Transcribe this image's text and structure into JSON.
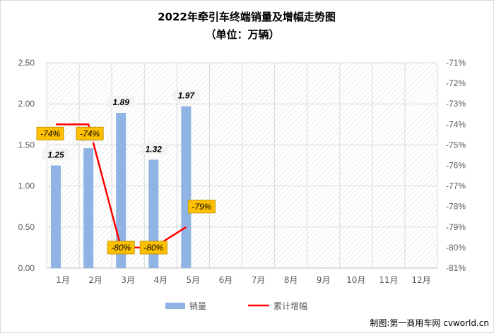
{
  "chart_data": {
    "type": "bar+line",
    "title": "2022年牵引车终端销量及增幅走势图",
    "subtitle": "（单位：万辆）",
    "categories": [
      "1月",
      "2月",
      "3月",
      "4月",
      "5月",
      "6月",
      "7月",
      "8月",
      "9月",
      "10月",
      "11月",
      "12月"
    ],
    "series": [
      {
        "name": "销量",
        "type": "bar",
        "axis": "left",
        "color": "#8fb4e3",
        "values": [
          1.25,
          1.46,
          1.89,
          1.32,
          1.97,
          null,
          null,
          null,
          null,
          null,
          null,
          null
        ],
        "labels": [
          "1.25",
          "1.46",
          "1.89",
          "1.32",
          "1.97"
        ]
      },
      {
        "name": "累计增幅",
        "type": "line",
        "axis": "right",
        "color": "#ff0000",
        "values": [
          -74,
          -74,
          -80,
          -80,
          -79,
          null,
          null,
          null,
          null,
          null,
          null,
          null
        ],
        "labels": [
          "-74%",
          "-74%",
          "-80%",
          "-80%",
          "-79%"
        ]
      }
    ],
    "y_left": {
      "min": 0,
      "max": 2.5,
      "ticks": [
        "0.00",
        "0.50",
        "1.00",
        "1.50",
        "2.00",
        "2.50"
      ]
    },
    "y_right": {
      "min": -81,
      "max": -71,
      "ticks": [
        "-71%",
        "-72%",
        "-73%",
        "-74%",
        "-75%",
        "-76%",
        "-77%",
        "-78%",
        "-79%",
        "-80%",
        "-81%"
      ]
    },
    "grid": true,
    "legend_position": "bottom",
    "colors": {
      "bar": "#8fb4e3",
      "line": "#ff0000",
      "label_box": "#ffc000",
      "label_box_border": "#c89600"
    }
  },
  "credit": "制图:第一商用车网 cvworld.cn"
}
